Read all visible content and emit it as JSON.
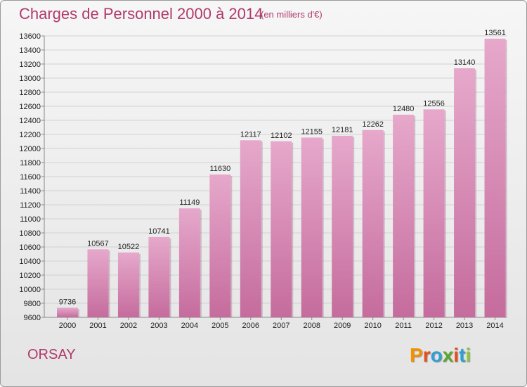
{
  "title": "Charges de Personnel 2000 à 2014",
  "subtitle": "(en milliers d'€)",
  "commune": "ORSAY",
  "logo": {
    "letters": [
      "P",
      "r",
      "o",
      "x",
      "i",
      "t",
      "i"
    ],
    "colors": [
      "#f39200",
      "#e84e1b",
      "#2f9fd8",
      "#5aa72e",
      "#e84e1b",
      "#2f9fd8",
      "#8cc63f"
    ]
  },
  "colors": {
    "bar_light": "#e6a8cb",
    "bar_dark": "#c56c9d",
    "title": "#b03a6b"
  },
  "chart_data": {
    "type": "bar",
    "categories": [
      "2000",
      "2001",
      "2002",
      "2003",
      "2004",
      "2005",
      "2006",
      "2007",
      "2008",
      "2009",
      "2010",
      "2011",
      "2012",
      "2013",
      "2014"
    ],
    "values": [
      9736,
      10567,
      10522,
      10741,
      11149,
      11630,
      12117,
      12102,
      12155,
      12181,
      12262,
      12480,
      12556,
      13140,
      13561
    ],
    "data_labels": [
      "9736",
      "10567",
      "10522",
      "10741",
      "11149",
      "11630",
      "12117",
      "12102",
      "12155",
      "12181",
      "12262",
      "12480",
      "12556",
      "13140",
      "13561"
    ],
    "ylim": [
      9600,
      13600
    ],
    "yticks": [
      9600,
      9800,
      10000,
      10200,
      10400,
      10600,
      10800,
      11000,
      11200,
      11400,
      11600,
      11800,
      12000,
      12200,
      12400,
      12600,
      12800,
      13000,
      13200,
      13400,
      13600
    ],
    "grid": true
  }
}
